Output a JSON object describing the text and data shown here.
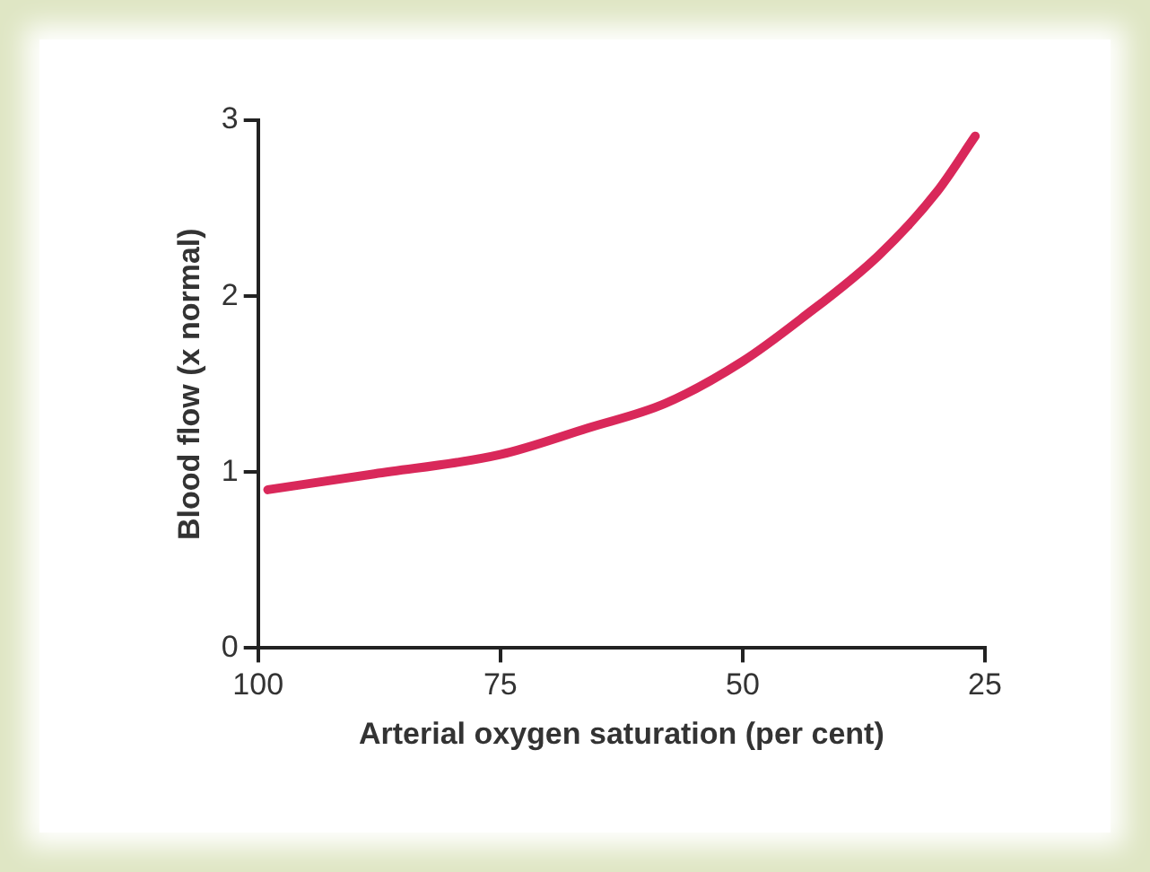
{
  "chart_data": {
    "type": "line",
    "xlabel": "Arterial oxygen saturation (per cent)",
    "ylabel": "Blood flow (x normal)",
    "x": [
      99,
      88,
      75,
      66,
      58,
      50,
      44,
      36,
      30,
      26
    ],
    "series": [
      {
        "color": "#d9285a",
        "values": [
          0.9,
          0.99,
          1.1,
          1.25,
          1.39,
          1.63,
          1.87,
          2.23,
          2.59,
          2.91
        ]
      }
    ],
    "xlim": [
      100,
      25
    ],
    "xticks": [
      100,
      75,
      50,
      25
    ],
    "ylim": [
      0,
      3
    ],
    "yticks": [
      0,
      1,
      2,
      3
    ],
    "grid": false,
    "legend": false,
    "marker": "none",
    "line_style": "solid"
  }
}
